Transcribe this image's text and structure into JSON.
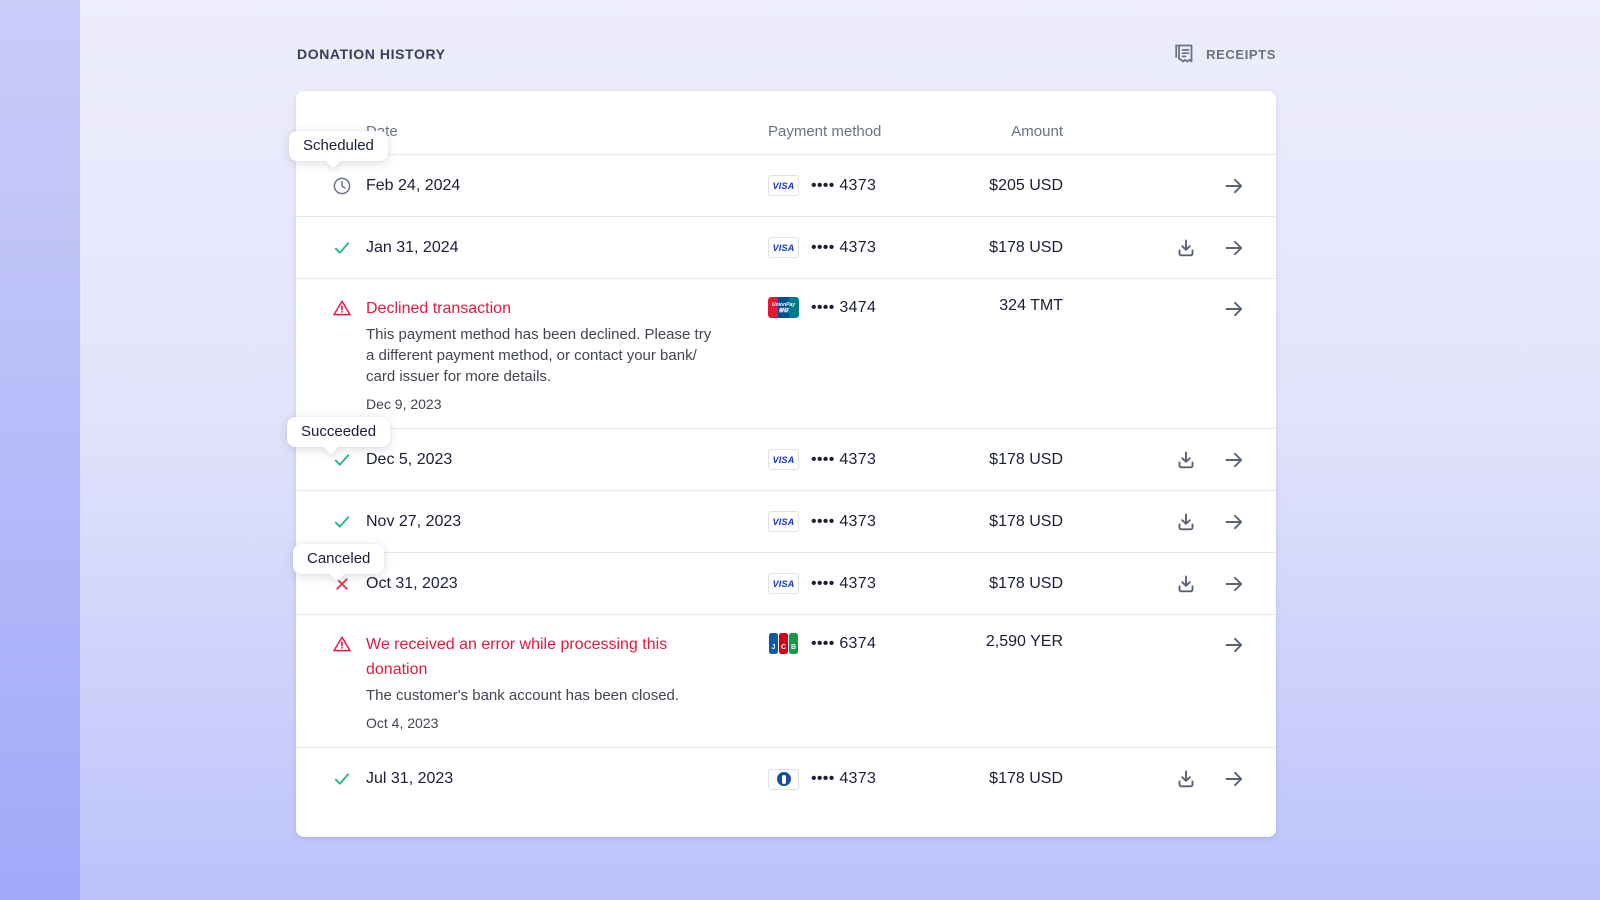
{
  "page": {
    "title": "DONATION HISTORY",
    "receipts_label": "RECEIPTS"
  },
  "table": {
    "columns": {
      "date": "Date",
      "payment": "Payment method",
      "amount": "Amount"
    }
  },
  "tooltips": {
    "scheduled": "Scheduled",
    "succeeded": "Succeeded",
    "canceled": "Canceled"
  },
  "brands": {
    "visa": {
      "label": "VISA"
    },
    "unionpay": {
      "label": "UnionPay",
      "label2": "银联"
    },
    "jcb": {
      "label": "JCB"
    },
    "diners": {
      "label": ""
    }
  },
  "rows": [
    {
      "status": "scheduled",
      "date": "Feb 24, 2024",
      "brand": "visa",
      "last4": "•••• 4373",
      "amount": "$205 USD",
      "download": false
    },
    {
      "status": "succeeded",
      "date": "Jan 31, 2024",
      "brand": "visa",
      "last4": "•••• 4373",
      "amount": "$178 USD",
      "download": true
    },
    {
      "status": "error",
      "title": "Declined transaction",
      "message": "This payment method has been declined. Please try a different payment method, or contact your bank/ card issuer for more details.",
      "date": "Dec 9, 2023",
      "brand": "unionpay",
      "last4": "•••• 3474",
      "amount": "324 TMT",
      "download": false
    },
    {
      "status": "succeeded",
      "date": "Dec 5, 2023",
      "brand": "visa",
      "last4": "•••• 4373",
      "amount": "$178 USD",
      "download": true
    },
    {
      "status": "succeeded",
      "date": "Nov 27, 2023",
      "brand": "visa",
      "last4": "•••• 4373",
      "amount": "$178 USD",
      "download": true
    },
    {
      "status": "canceled",
      "date": "Oct 31, 2023",
      "brand": "visa",
      "last4": "•••• 4373",
      "amount": "$178 USD",
      "download": true
    },
    {
      "status": "error",
      "title": "We received an error while processing this donation",
      "message": "The customer's bank account has been closed.",
      "date": "Oct 4, 2023",
      "brand": "jcb",
      "last4": "•••• 6374",
      "amount": "2,590 YER",
      "download": false
    },
    {
      "status": "succeeded",
      "date": "Jul 31, 2023",
      "brand": "diners",
      "last4": "•••• 4373",
      "amount": "$178 USD",
      "download": true
    }
  ],
  "colors": {
    "accent_red": "#df1b41",
    "accent_green": "#27b882",
    "icon_slate": "#5b6275",
    "text_dark": "#1a1f36",
    "text_gray": "#697386",
    "visa_blue": "#1434cb"
  }
}
